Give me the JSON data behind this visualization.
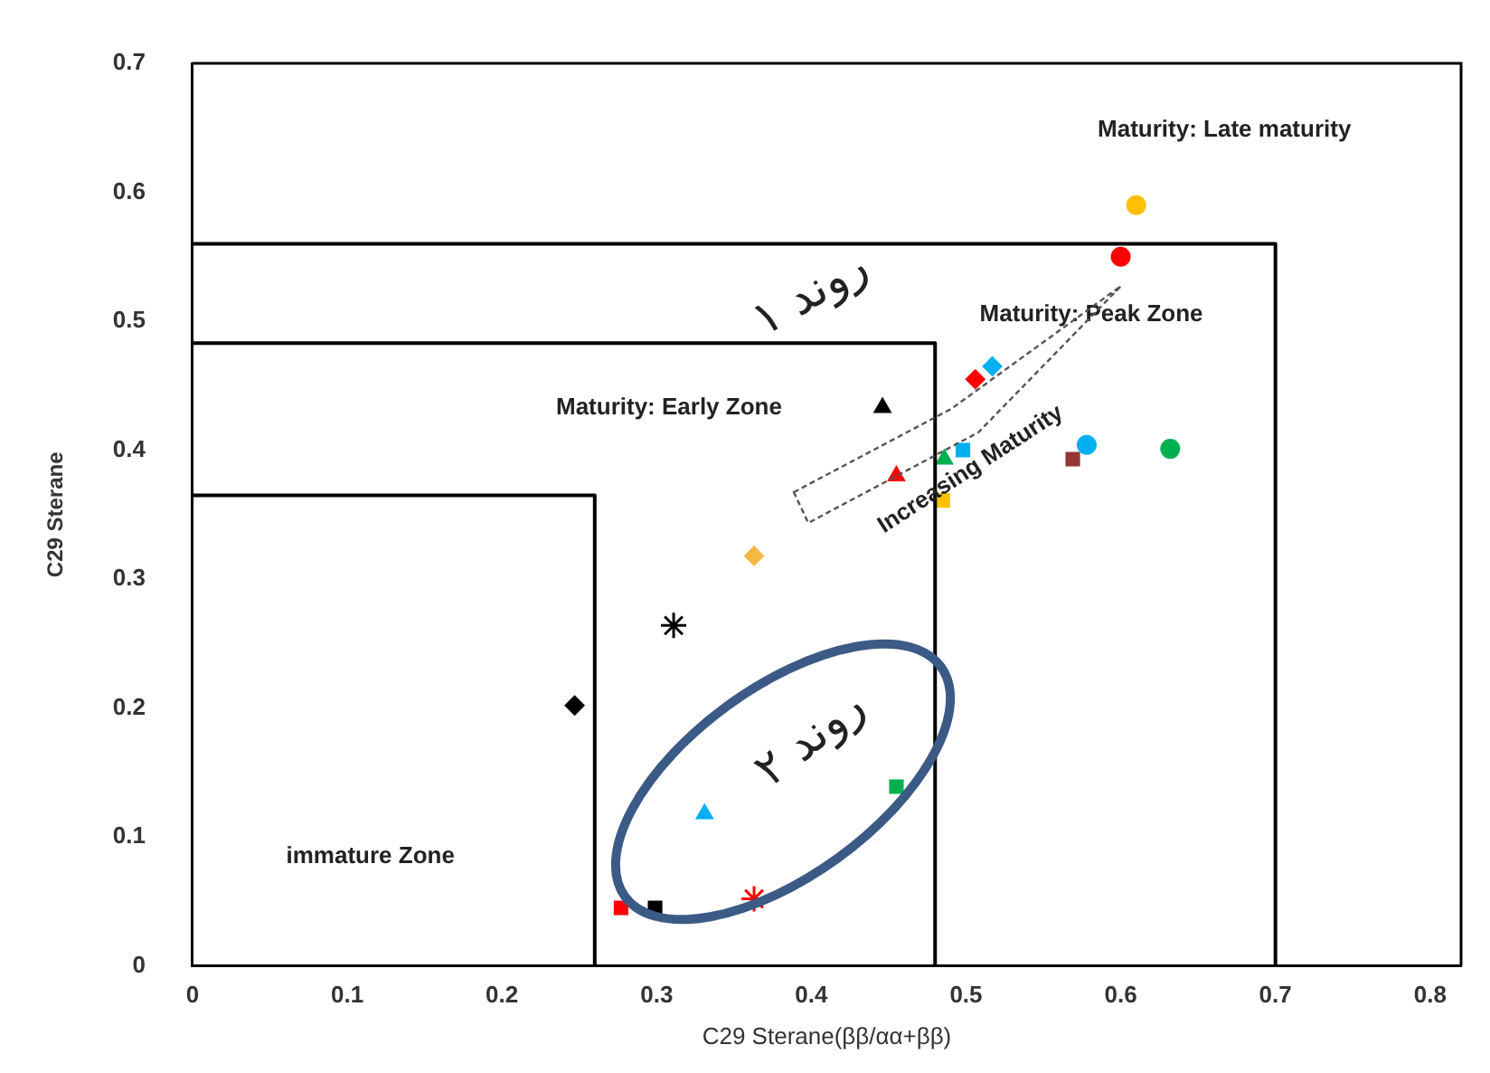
{
  "chart_data": {
    "type": "scatter",
    "xlabel": "C29 Sterane(ββ/αα+ββ)",
    "ylabel": "C29 Sterane",
    "xlim": [
      0,
      0.82
    ],
    "xticks": [
      0,
      0.1,
      0.2,
      0.3,
      0.4,
      0.5,
      0.6,
      0.7,
      0.8
    ],
    "ylim": [
      0,
      0.7
    ],
    "yticks": [
      0,
      0.1,
      0.2,
      0.3,
      0.4,
      0.5,
      0.6,
      0.7
    ],
    "grid": false,
    "legend": false,
    "series": [
      {
        "type": "line",
        "x": [
          0,
          0.26,
          0.26
        ],
        "values": [
          0.365,
          0.365,
          0
        ],
        "color": "#000000",
        "marker": "none"
      },
      {
        "type": "line",
        "x": [
          0,
          0.48,
          0.48
        ],
        "values": [
          0.483,
          0.483,
          0
        ],
        "color": "#000000",
        "marker": "none"
      },
      {
        "type": "line",
        "x": [
          0,
          0.7,
          0.7
        ],
        "values": [
          0.56,
          0.56,
          0
        ],
        "color": "#000000",
        "marker": "none"
      },
      {
        "x": [
          0.61
        ],
        "values": [
          0.59
        ],
        "color": "#ffc000",
        "marker": "circle"
      },
      {
        "x": [
          0.6
        ],
        "values": [
          0.55
        ],
        "color": "#ff0000",
        "marker": "circle"
      },
      {
        "x": [
          0.517
        ],
        "values": [
          0.465
        ],
        "color": "#00b0f0",
        "marker": "diamond"
      },
      {
        "x": [
          0.506
        ],
        "values": [
          0.455
        ],
        "color": "#ff0000",
        "marker": "diamond"
      },
      {
        "x": [
          0.446
        ],
        "values": [
          0.433
        ],
        "color": "#000000",
        "marker": "triangle"
      },
      {
        "x": [
          0.498
        ],
        "values": [
          0.4
        ],
        "color": "#00b0f0",
        "marker": "square"
      },
      {
        "x": [
          0.486
        ],
        "values": [
          0.393
        ],
        "color": "#00b050",
        "marker": "triangle"
      },
      {
        "x": [
          0.455
        ],
        "values": [
          0.38
        ],
        "color": "#ff0000",
        "marker": "triangle"
      },
      {
        "x": [
          0.485
        ],
        "values": [
          0.361
        ],
        "color": "#ffc000",
        "marker": "square"
      },
      {
        "x": [
          0.569
        ],
        "values": [
          0.393
        ],
        "color": "#953735",
        "marker": "square"
      },
      {
        "x": [
          0.578
        ],
        "values": [
          0.404
        ],
        "color": "#00b0f0",
        "marker": "circle"
      },
      {
        "x": [
          0.632
        ],
        "values": [
          0.401
        ],
        "color": "#00b050",
        "marker": "circle"
      },
      {
        "x": [
          0.363
        ],
        "values": [
          0.318
        ],
        "color": "#f4b942",
        "marker": "diamond"
      },
      {
        "x": [
          0.311
        ],
        "values": [
          0.264
        ],
        "color": "#000000",
        "marker": "cross"
      },
      {
        "x": [
          0.247
        ],
        "values": [
          0.202
        ],
        "color": "#000000",
        "marker": "diamond"
      },
      {
        "x": [
          0.331
        ],
        "values": [
          0.118
        ],
        "color": "#00b0f0",
        "marker": "triangle"
      },
      {
        "x": [
          0.455
        ],
        "values": [
          0.139
        ],
        "color": "#00b050",
        "marker": "square"
      },
      {
        "x": [
          0.363
        ],
        "values": [
          0.052
        ],
        "color": "#ff0000",
        "marker": "cross"
      },
      {
        "x": [
          0.277
        ],
        "values": [
          0.045
        ],
        "color": "#ff0000",
        "marker": "square"
      },
      {
        "x": [
          0.299
        ],
        "values": [
          0.045
        ],
        "color": "#000000",
        "marker": "square"
      }
    ],
    "annotations": [
      "Maturity: Late maturity",
      "Maturity: Peak Zone",
      "Maturity: Early Zone",
      "immature Zone",
      "Increasing Maturity",
      "روند ۱",
      "روند ۲"
    ]
  }
}
